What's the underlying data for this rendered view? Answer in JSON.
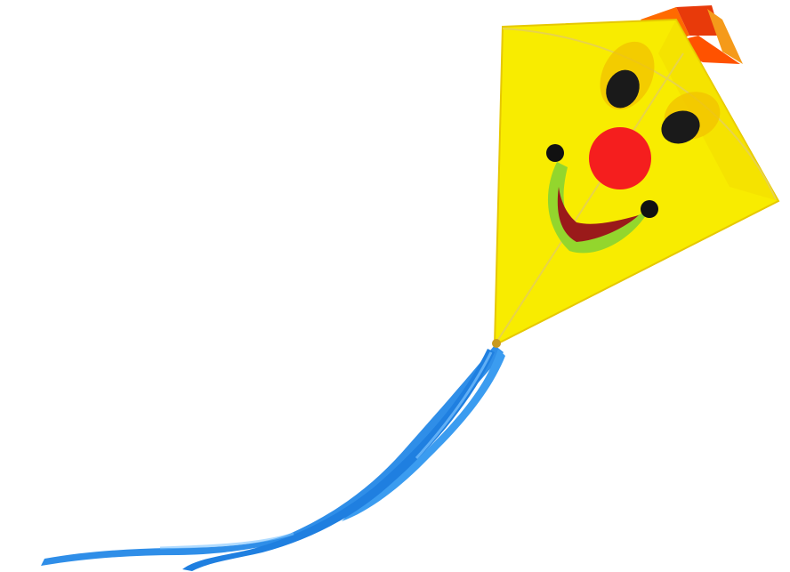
{
  "scene": {
    "subject": "kite",
    "background_color": "#ffffff"
  },
  "kite": {
    "sail_color": "#f8ec00",
    "sail_edge_color": "#e6c800",
    "frame_color": "#e8d34a",
    "face": {
      "eye_color": "#1a1a1a",
      "eye_highlight_color": "#f2c200",
      "nose_color": "#f51e1e",
      "mouth_outline_color": "#93d62d",
      "mouth_inner_color": "#9a1a1a",
      "dimple_color": "#111111"
    },
    "top_tuft_colors": [
      "#ff6a00",
      "#e83a0a",
      "#f59a1a"
    ],
    "tail": {
      "ribbon_count": 2,
      "ribbon_color": "#2f8ee8",
      "ribbon_highlight_color": "#7cc3ff"
    }
  }
}
